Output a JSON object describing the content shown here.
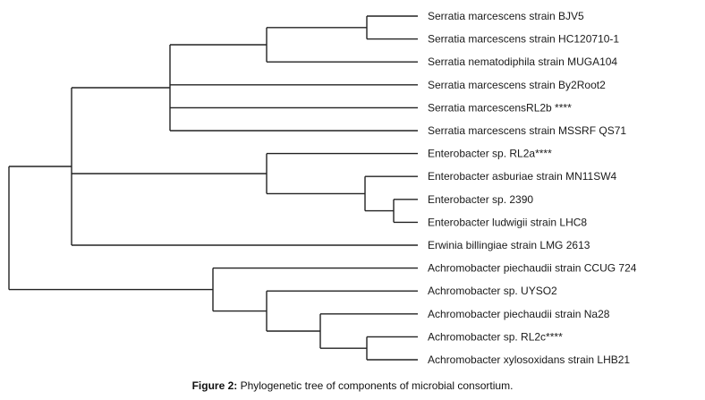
{
  "figure": {
    "caption_label": "Figure 2:",
    "caption_text": " Phylogenetic tree of components of microbial consortium."
  },
  "tree": {
    "leaves": [
      "Serratia marcescens strain BJV5",
      "Serratia marcescens strain HC120710-1",
      "Serratia nematodiphila strain MUGA104",
      "Serratia marcescens strain By2Root2",
      "Serratia marcescensRL2b ****",
      "Serratia marcescens strain MSSRF QS71",
      "Enterobacter sp. RL2a****",
      "Enterobacter asburiae strain MN11SW4",
      "Enterobacter sp. 2390",
      "Enterobacter ludwigii strain LHC8",
      "Erwinia billingiae strain LMG 2613",
      "Achromobacter piechaudii strain CCUG 724",
      "Achromobacter sp. UYSO2",
      "Achromobacter piechaudii strain Na28",
      "Achromobacter sp. RL2c****",
      "Achromobacter xylosoxidans strain LHB21"
    ]
  }
}
